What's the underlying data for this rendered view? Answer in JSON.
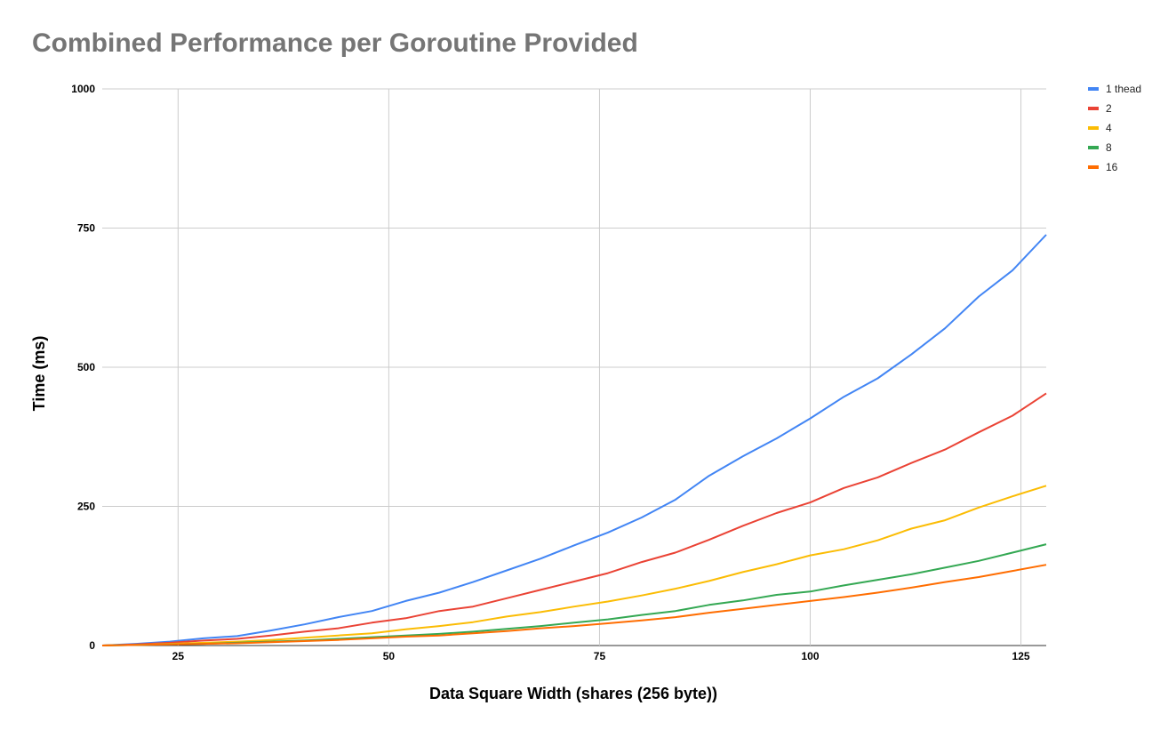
{
  "chart_data": {
    "type": "line",
    "title": "Combined Performance per Goroutine Provided",
    "xlabel": "Data Square Width (shares (256 byte))",
    "ylabel": "Time (ms)",
    "xlim": [
      16,
      128
    ],
    "ylim": [
      0,
      1000
    ],
    "x_ticks": [
      25,
      50,
      75,
      100,
      125
    ],
    "y_ticks": [
      0,
      250,
      500,
      750,
      1000
    ],
    "grid": true,
    "legend_position": "top-right",
    "x": [
      16,
      20,
      24,
      28,
      32,
      36,
      40,
      44,
      48,
      52,
      56,
      60,
      64,
      68,
      72,
      76,
      80,
      84,
      88,
      92,
      96,
      100,
      104,
      108,
      112,
      116,
      120,
      124,
      128
    ],
    "series": [
      {
        "name": "1 thead",
        "color": "#4285f4",
        "values": [
          0,
          3,
          7,
          13,
          17,
          27,
          38,
          51,
          62,
          80,
          95,
          114,
          135,
          156,
          180,
          203,
          230,
          262,
          305,
          340,
          372,
          408,
          447,
          480,
          523,
          570,
          627,
          674,
          738
        ]
      },
      {
        "name": "2",
        "color": "#ea4335",
        "values": [
          0,
          2,
          5,
          9,
          12,
          18,
          25,
          31,
          41,
          49,
          62,
          70,
          85,
          100,
          115,
          130,
          150,
          167,
          190,
          215,
          238,
          257,
          283,
          302,
          328,
          352,
          383,
          413,
          453
        ]
      },
      {
        "name": "4",
        "color": "#fbbc04",
        "values": [
          0,
          1,
          3,
          5,
          7,
          10,
          14,
          18,
          22,
          29,
          35,
          42,
          52,
          60,
          70,
          79,
          90,
          102,
          116,
          132,
          146,
          162,
          173,
          189,
          210,
          225,
          248,
          268,
          287
        ]
      },
      {
        "name": "8",
        "color": "#34a853",
        "values": [
          0,
          1,
          2,
          3,
          5,
          7,
          9,
          12,
          15,
          18,
          21,
          25,
          30,
          35,
          41,
          47,
          55,
          62,
          73,
          81,
          91,
          97,
          108,
          118,
          128,
          140,
          152,
          167,
          182
        ]
      },
      {
        "name": "16",
        "color": "#ff6d01",
        "values": [
          0,
          1,
          2,
          3,
          4,
          6,
          8,
          10,
          13,
          16,
          18,
          22,
          26,
          31,
          35,
          40,
          45,
          51,
          59,
          66,
          73,
          80,
          87,
          95,
          104,
          114,
          123,
          134,
          145
        ]
      }
    ]
  }
}
